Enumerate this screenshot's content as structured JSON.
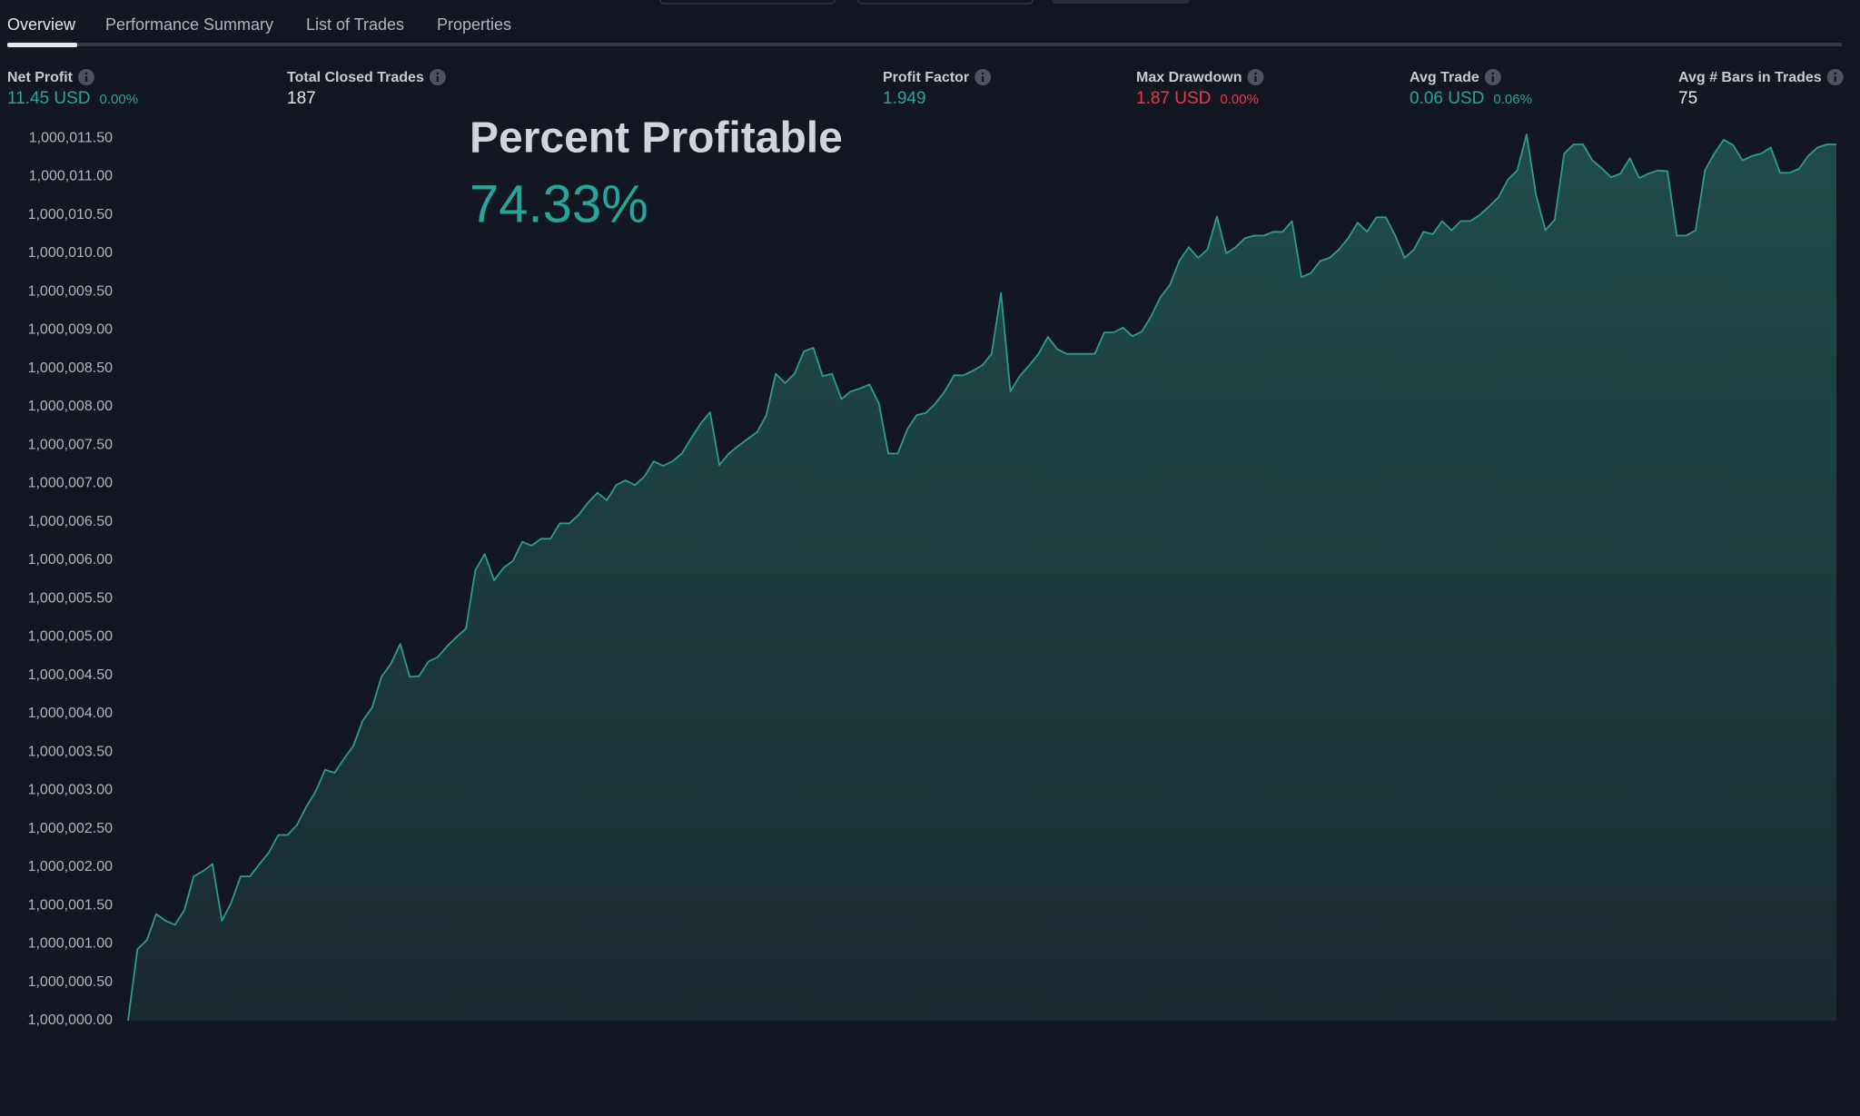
{
  "tabs": [
    "Overview",
    "Performance Summary",
    "List of Trades",
    "Properties"
  ],
  "metrics": [
    {
      "label": "Net Profit",
      "value": "11.45 USD",
      "percent": "0.00%",
      "color": "#26a69a"
    },
    {
      "label": "Total Closed Trades",
      "value": "187",
      "color": "#e6e8ee"
    },
    {
      "label": "Profit Factor",
      "value": "1.949",
      "color": "#26a69a"
    },
    {
      "label": "Max Drawdown",
      "value": "1.87 USD",
      "percent": "0.00%",
      "color": "#f23645"
    },
    {
      "label": "Avg Trade",
      "value": "0.06 USD",
      "percent": "0.06%",
      "color": "#26a69a"
    },
    {
      "label": "Avg # Bars in Trades",
      "value": "75",
      "color": "#e6e8ee"
    }
  ],
  "overlay": {
    "title": "Percent Profitable",
    "value": "74.33%"
  },
  "chart_data": {
    "type": "area",
    "color": "#2a9d8f",
    "ylim": [
      1000000,
      1000011.55
    ],
    "yticks": [
      {
        "value": 1000000,
        "label": "1,000,000.00"
      },
      {
        "value": 1000000.5,
        "label": "1,000,000.50"
      },
      {
        "value": 1000001,
        "label": "1,000,001.00"
      },
      {
        "value": 1000001.5,
        "label": "1,000,001.50"
      },
      {
        "value": 1000002,
        "label": "1,000,002.00"
      },
      {
        "value": 1000002.5,
        "label": "1,000,002.50"
      },
      {
        "value": 1000003,
        "label": "1,000,003.00"
      },
      {
        "value": 1000003.5,
        "label": "1,000,003.50"
      },
      {
        "value": 1000004,
        "label": "1,000,004.00"
      },
      {
        "value": 1000004.5,
        "label": "1,000,004.50"
      },
      {
        "value": 1000005,
        "label": "1,000,005.00"
      },
      {
        "value": 1000005.5,
        "label": "1,000,005.50"
      },
      {
        "value": 1000006,
        "label": "1,000,006.00"
      },
      {
        "value": 1000006.5,
        "label": "1,000,006.50"
      },
      {
        "value": 1000007,
        "label": "1,000,007.00"
      },
      {
        "value": 1000007.5,
        "label": "1,000,007.50"
      },
      {
        "value": 1000008,
        "label": "1,000,008.00"
      },
      {
        "value": 1000008.5,
        "label": "1,000,008.50"
      },
      {
        "value": 1000009,
        "label": "1,000,009.00"
      },
      {
        "value": 1000009.5,
        "label": "1,000,009.50"
      },
      {
        "value": 1000010,
        "label": "1,000,010.00"
      },
      {
        "value": 1000010.5,
        "label": "1,000,010.50"
      },
      {
        "value": 1000011,
        "label": "1,000,011.00"
      },
      {
        "value": 1000011.5,
        "label": "1,000,011.50"
      }
    ],
    "values": [
      1000000,
      1000000.93,
      1000001.05,
      1000001.39,
      1000001.3,
      1000001.25,
      1000001.44,
      1000001.88,
      1000001.95,
      1000002.04,
      1000001.3,
      1000001.54,
      1000001.88,
      1000001.88,
      1000002.04,
      1000002.19,
      1000002.42,
      1000002.42,
      1000002.55,
      1000002.79,
      1000002.99,
      1000003.27,
      1000003.23,
      1000003.41,
      1000003.58,
      1000003.91,
      1000004.08,
      1000004.48,
      1000004.65,
      1000004.91,
      1000004.48,
      1000004.49,
      1000004.68,
      1000004.74,
      1000004.88,
      1000005,
      1000005.11,
      1000005.87,
      1000006.08,
      1000005.74,
      1000005.9,
      1000005.99,
      1000006.24,
      1000006.19,
      1000006.28,
      1000006.28,
      1000006.48,
      1000006.48,
      1000006.59,
      1000006.75,
      1000006.88,
      1000006.78,
      1000006.98,
      1000007.04,
      1000006.98,
      1000007.09,
      1000007.29,
      1000007.23,
      1000007.29,
      1000007.39,
      1000007.59,
      1000007.78,
      1000007.93,
      1000007.24,
      1000007.39,
      1000007.49,
      1000007.58,
      1000007.67,
      1000007.89,
      1000008.43,
      1000008.31,
      1000008.43,
      1000008.72,
      1000008.77,
      1000008.4,
      1000008.43,
      1000008.1,
      1000008.2,
      1000008.24,
      1000008.29,
      1000008.04,
      1000007.39,
      1000007.39,
      1000007.7,
      1000007.89,
      1000007.92,
      1000008.04,
      1000008.2,
      1000008.41,
      1000008.41,
      1000008.47,
      1000008.54,
      1000008.69,
      1000009.48,
      1000008.2,
      1000008.4,
      1000008.54,
      1000008.69,
      1000008.91,
      1000008.75,
      1000008.69,
      1000008.69,
      1000008.69,
      1000008.69,
      1000008.97,
      1000008.97,
      1000009.03,
      1000008.92,
      1000008.98,
      1000009.18,
      1000009.43,
      1000009.59,
      1000009.9,
      1000010.08,
      1000009.94,
      1000010.05,
      1000010.48,
      1000010,
      1000010.08,
      1000010.2,
      1000010.23,
      1000010.23,
      1000010.28,
      1000010.28,
      1000010.42,
      1000009.69,
      1000009.74,
      1000009.9,
      1000009.94,
      1000010.05,
      1000010.2,
      1000010.4,
      1000010.28,
      1000010.47,
      1000010.47,
      1000010.23,
      1000009.94,
      1000010.05,
      1000010.28,
      1000010.25,
      1000010.42,
      1000010.3,
      1000010.42,
      1000010.42,
      1000010.5,
      1000010.61,
      1000010.73,
      1000010.96,
      1000011.08,
      1000011.55,
      1000010.76,
      1000010.3,
      1000010.44,
      1000011.3,
      1000011.42,
      1000011.42,
      1000011.21,
      1000011.11,
      1000010.99,
      1000011.04,
      1000011.24,
      1000010.98,
      1000011.04,
      1000011.08,
      1000011.07,
      1000010.23,
      1000010.23,
      1000010.3,
      1000011.08,
      1000011.3,
      1000011.48,
      1000011.41,
      1000011.21,
      1000011.27,
      1000011.3,
      1000011.38,
      1000011.05,
      1000011.05,
      1000011.1,
      1000011.27,
      1000011.38,
      1000011.42,
      1000011.42
    ]
  }
}
